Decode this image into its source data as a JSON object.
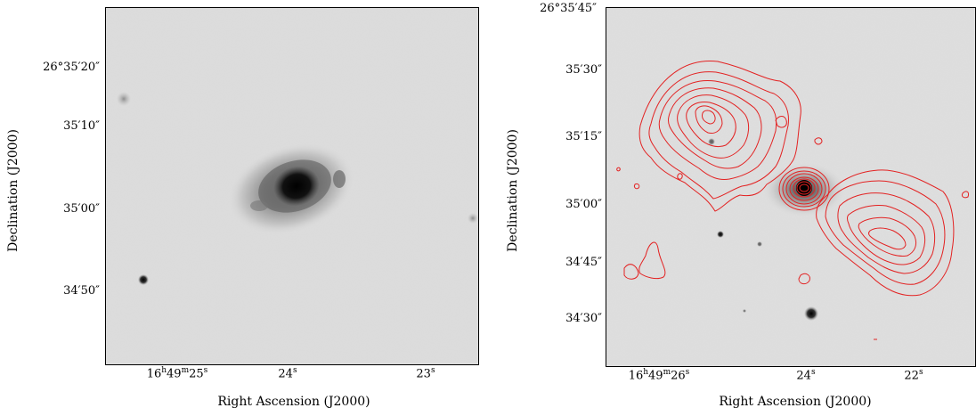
{
  "left_panel": {
    "y_ticks": [
      "26°35′20″",
      "35′10″",
      "35′00″",
      "34′50″"
    ],
    "x_ticks": [
      {
        "h": "16",
        "hs": "h",
        "m": "49",
        "ms": "m",
        "s": "25",
        "ss": "s"
      },
      {
        "s": "24",
        "ss": "s"
      },
      {
        "s": "23",
        "ss": "s"
      }
    ],
    "x_title": "Right Ascension (J2000)",
    "y_title": "Declination (J2000)"
  },
  "right_panel": {
    "y_ticks": [
      "26°35′45″",
      "35′30″",
      "35′15″",
      "35′00″",
      "34′45″",
      "34′30″"
    ],
    "x_ticks": [
      {
        "h": "16",
        "hs": "h",
        "m": "49",
        "ms": "m",
        "s": "26",
        "ss": "s"
      },
      {
        "s": "24",
        "ss": "s"
      },
      {
        "s": "22",
        "ss": "s"
      }
    ],
    "x_title": "Right Ascension (J2000)",
    "y_title": "Declination (J2000)",
    "contour_color": "#e32222"
  }
}
